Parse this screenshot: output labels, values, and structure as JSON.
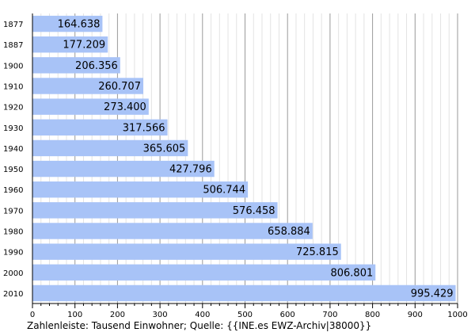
{
  "chart_data": {
    "type": "bar",
    "orientation": "horizontal",
    "categories": [
      "1877",
      "1887",
      "1900",
      "1910",
      "1920",
      "1930",
      "1940",
      "1950",
      "1960",
      "1970",
      "1980",
      "1990",
      "2000",
      "2010"
    ],
    "values": [
      164.638,
      177.209,
      206.356,
      260.707,
      273.4,
      317.566,
      365.605,
      427.796,
      506.744,
      576.458,
      658.884,
      725.815,
      806.801,
      995.429
    ],
    "value_labels": [
      "164.638",
      "177.209",
      "206.356",
      "260.707",
      "273.400",
      "317.566",
      "365.605",
      "427.796",
      "506.744",
      "576.458",
      "658.884",
      "725.815",
      "806.801",
      "995.429"
    ],
    "xlim": [
      0,
      1000
    ],
    "x_ticks": [
      0,
      100,
      200,
      300,
      400,
      500,
      600,
      700,
      800,
      900,
      1000
    ],
    "x_tick_labels": [
      "0",
      "100",
      "200",
      "300",
      "400",
      "500",
      "600",
      "700",
      "800",
      "900",
      "1000"
    ],
    "grid": "vertical",
    "bar_color": "#a8c3f7",
    "footnote": "Zahlenleiste: Tausend Einwohner; Quelle: {{INE.es EWZ-Archiv|38000}}"
  }
}
